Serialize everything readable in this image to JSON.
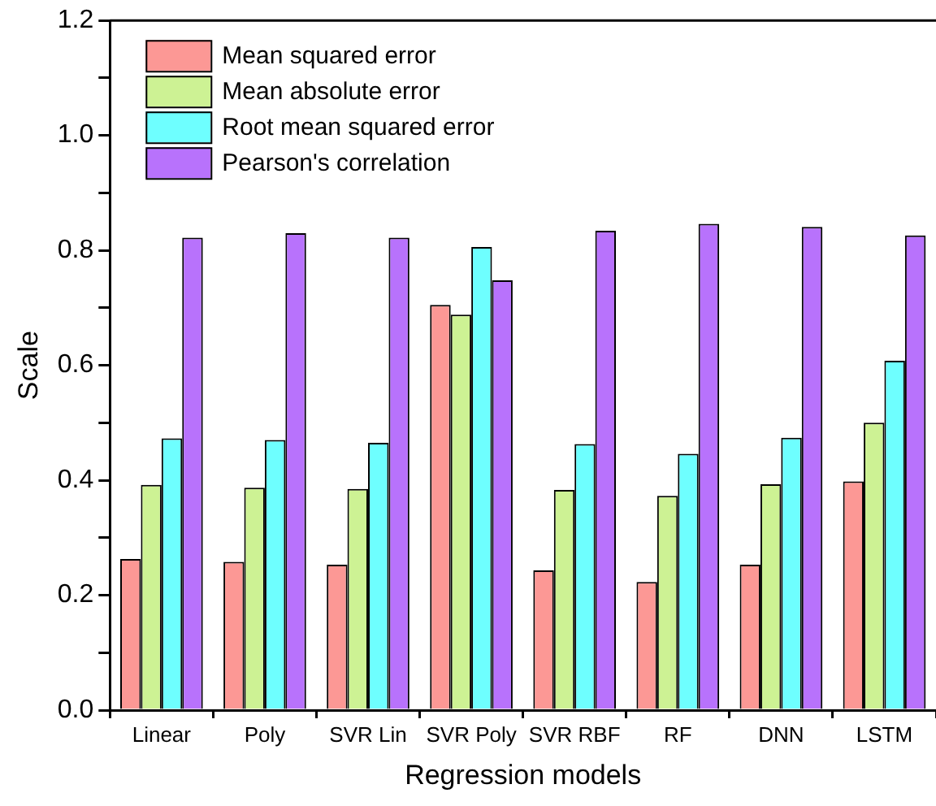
{
  "chart_data": {
    "type": "bar",
    "xlabel": "Regression models",
    "ylabel": "Scale",
    "categories": [
      "Linear",
      "Poly",
      "SVR Lin",
      "SVR Poly",
      "SVR RBF",
      "RF",
      "DNN",
      "LSTM"
    ],
    "series": [
      {
        "name": "Mean squared error",
        "color": "#fc9895",
        "values": [
          0.263,
          0.258,
          0.253,
          0.705,
          0.243,
          0.223,
          0.253,
          0.398
        ]
      },
      {
        "name": "Mean absolute error",
        "color": "#cdf294",
        "values": [
          0.392,
          0.387,
          0.385,
          0.688,
          0.383,
          0.373,
          0.393,
          0.5
        ]
      },
      {
        "name": "Root mean squared error",
        "color": "#6effff",
        "values": [
          0.473,
          0.47,
          0.465,
          0.806,
          0.463,
          0.446,
          0.474,
          0.608
        ]
      },
      {
        "name": "Pearson's correlation",
        "color": "#b872fc",
        "values": [
          0.822,
          0.83,
          0.822,
          0.748,
          0.834,
          0.846,
          0.841,
          0.826
        ]
      }
    ],
    "ylim": [
      0,
      1.2
    ],
    "yticks": [
      {
        "value": 0,
        "label": "0.0"
      },
      {
        "value": 0.1,
        "label": null
      },
      {
        "value": 0.2,
        "label": "0.2"
      },
      {
        "value": 0.3,
        "label": null
      },
      {
        "value": 0.4,
        "label": "0.4"
      },
      {
        "value": 0.5,
        "label": null
      },
      {
        "value": 0.6,
        "label": "0.6"
      },
      {
        "value": 0.7,
        "label": null
      },
      {
        "value": 0.8,
        "label": "0.8"
      },
      {
        "value": 0.9,
        "label": null
      },
      {
        "value": 1,
        "label": "1.0"
      },
      {
        "value": 1.1,
        "label": null
      },
      {
        "value": 1.2,
        "label": "1.2"
      }
    ],
    "grid": false,
    "legend": "top left"
  }
}
